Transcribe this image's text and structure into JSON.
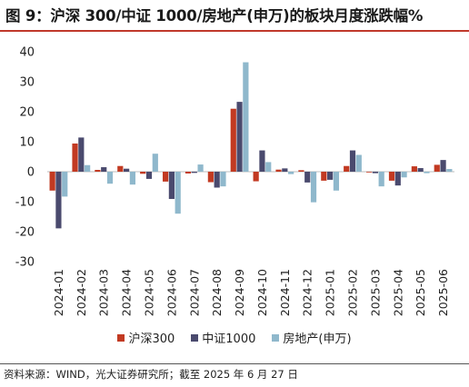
{
  "header": {
    "title": "图 9：沪深 300/中证 1000/房地产(申万)的板块月度涨跌幅%"
  },
  "footer": {
    "source": "资料来源：WIND，光大证券研究所；截至 2025 年 6 月 27 日"
  },
  "colors": {
    "hs300": "#c23a22",
    "zz1000": "#4a4a6e",
    "realestate": "#8fb8cc",
    "title_rule": "#c0392b"
  },
  "chart_data": {
    "type": "bar",
    "title": "",
    "xlabel": "",
    "ylabel": "",
    "ylim": [
      -30,
      40
    ],
    "yticks": [
      -30,
      -20,
      -10,
      0,
      10,
      20,
      30,
      40
    ],
    "grid": false,
    "legend_position": "bottom",
    "categories": [
      "2024-01",
      "2024-02",
      "2024-03",
      "2024-04",
      "2024-05",
      "2024-06",
      "2024-07",
      "2024-08",
      "2024-09",
      "2024-10",
      "2024-11",
      "2024-12",
      "2025-01",
      "2025-02",
      "2025-03",
      "2025-04",
      "2025-05",
      "2025-06"
    ],
    "series": [
      {
        "name": "沪深300",
        "color": "#c23a22",
        "values": [
          -6.3,
          9.4,
          0.6,
          1.9,
          -0.7,
          -3.3,
          -0.6,
          -3.5,
          21.0,
          -3.2,
          0.7,
          0.5,
          -3.0,
          1.9,
          -0.1,
          -3.0,
          1.8,
          2.3
        ]
      },
      {
        "name": "中证1000",
        "color": "#4a4a6e",
        "values": [
          -18.9,
          11.4,
          1.5,
          1.0,
          -2.4,
          -9.1,
          -0.4,
          -5.3,
          23.3,
          7.1,
          1.1,
          -3.6,
          -2.7,
          7.1,
          -0.5,
          -4.6,
          1.2,
          3.9
        ]
      },
      {
        "name": "房地产(申万)",
        "color": "#8fb8cc",
        "values": [
          -8.3,
          2.2,
          -4.0,
          -4.3,
          6.0,
          -14.0,
          2.4,
          -4.9,
          36.5,
          3.2,
          -0.8,
          -10.2,
          -6.3,
          5.6,
          -4.9,
          -1.9,
          -0.5,
          0.9
        ]
      }
    ]
  }
}
